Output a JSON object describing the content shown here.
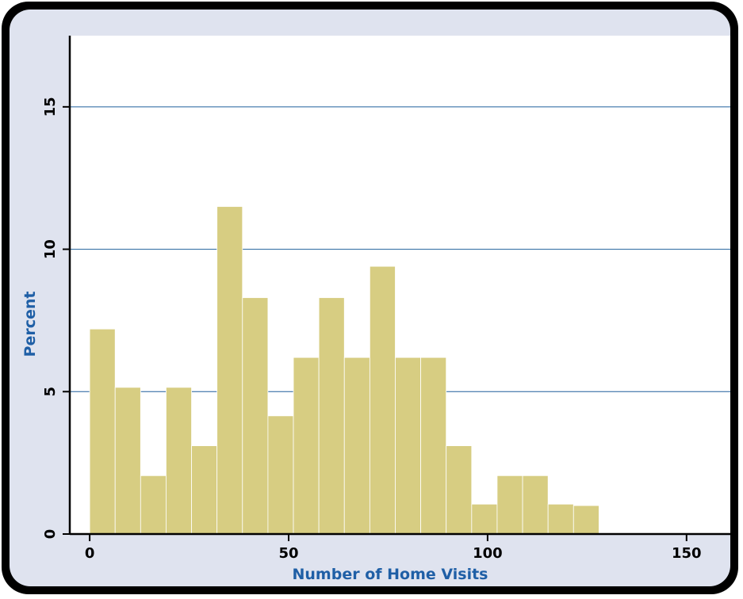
{
  "chart_data": {
    "type": "bar",
    "subtype": "histogram",
    "xlabel": "Number of Home Visits",
    "ylabel": "Percent",
    "xlim": [
      -5,
      161
    ],
    "ylim": [
      0,
      17.5
    ],
    "xticks": [
      0,
      50,
      100,
      150
    ],
    "yticks": [
      0,
      5,
      10,
      15
    ],
    "grid": true,
    "bin_width": 6.4,
    "bins": [
      {
        "x0": 0.0,
        "x1": 6.4,
        "value": 7.2
      },
      {
        "x0": 6.4,
        "x1": 12.8,
        "value": 5.15
      },
      {
        "x0": 12.8,
        "x1": 19.2,
        "value": 2.05
      },
      {
        "x0": 19.2,
        "x1": 25.6,
        "value": 5.15
      },
      {
        "x0": 25.6,
        "x1": 32.0,
        "value": 3.1
      },
      {
        "x0": 32.0,
        "x1": 38.4,
        "value": 11.5
      },
      {
        "x0": 38.4,
        "x1": 44.8,
        "value": 8.3
      },
      {
        "x0": 44.8,
        "x1": 51.2,
        "value": 4.15
      },
      {
        "x0": 51.2,
        "x1": 57.6,
        "value": 6.2
      },
      {
        "x0": 57.6,
        "x1": 64.0,
        "value": 8.3
      },
      {
        "x0": 64.0,
        "x1": 70.4,
        "value": 6.2
      },
      {
        "x0": 70.4,
        "x1": 76.8,
        "value": 9.4
      },
      {
        "x0": 76.8,
        "x1": 83.2,
        "value": 6.2
      },
      {
        "x0": 83.2,
        "x1": 89.6,
        "value": 6.2
      },
      {
        "x0": 89.6,
        "x1": 96.0,
        "value": 3.1
      },
      {
        "x0": 96.0,
        "x1": 102.4,
        "value": 1.05
      },
      {
        "x0": 102.4,
        "x1": 108.8,
        "value": 2.05
      },
      {
        "x0": 108.8,
        "x1": 115.2,
        "value": 2.05
      },
      {
        "x0": 115.2,
        "x1": 121.6,
        "value": 1.05
      },
      {
        "x0": 121.6,
        "x1": 128.0,
        "value": 1.0
      }
    ]
  },
  "colors": {
    "bar_fill": "#d7cd82",
    "bar_edge": "#ffffff",
    "gridline": "#1f5f9c",
    "axis": "#000000",
    "label": "#1f5fa6",
    "background_panel": "#dfe3ef",
    "plot_area": "#ffffff",
    "frame": "#000000"
  }
}
